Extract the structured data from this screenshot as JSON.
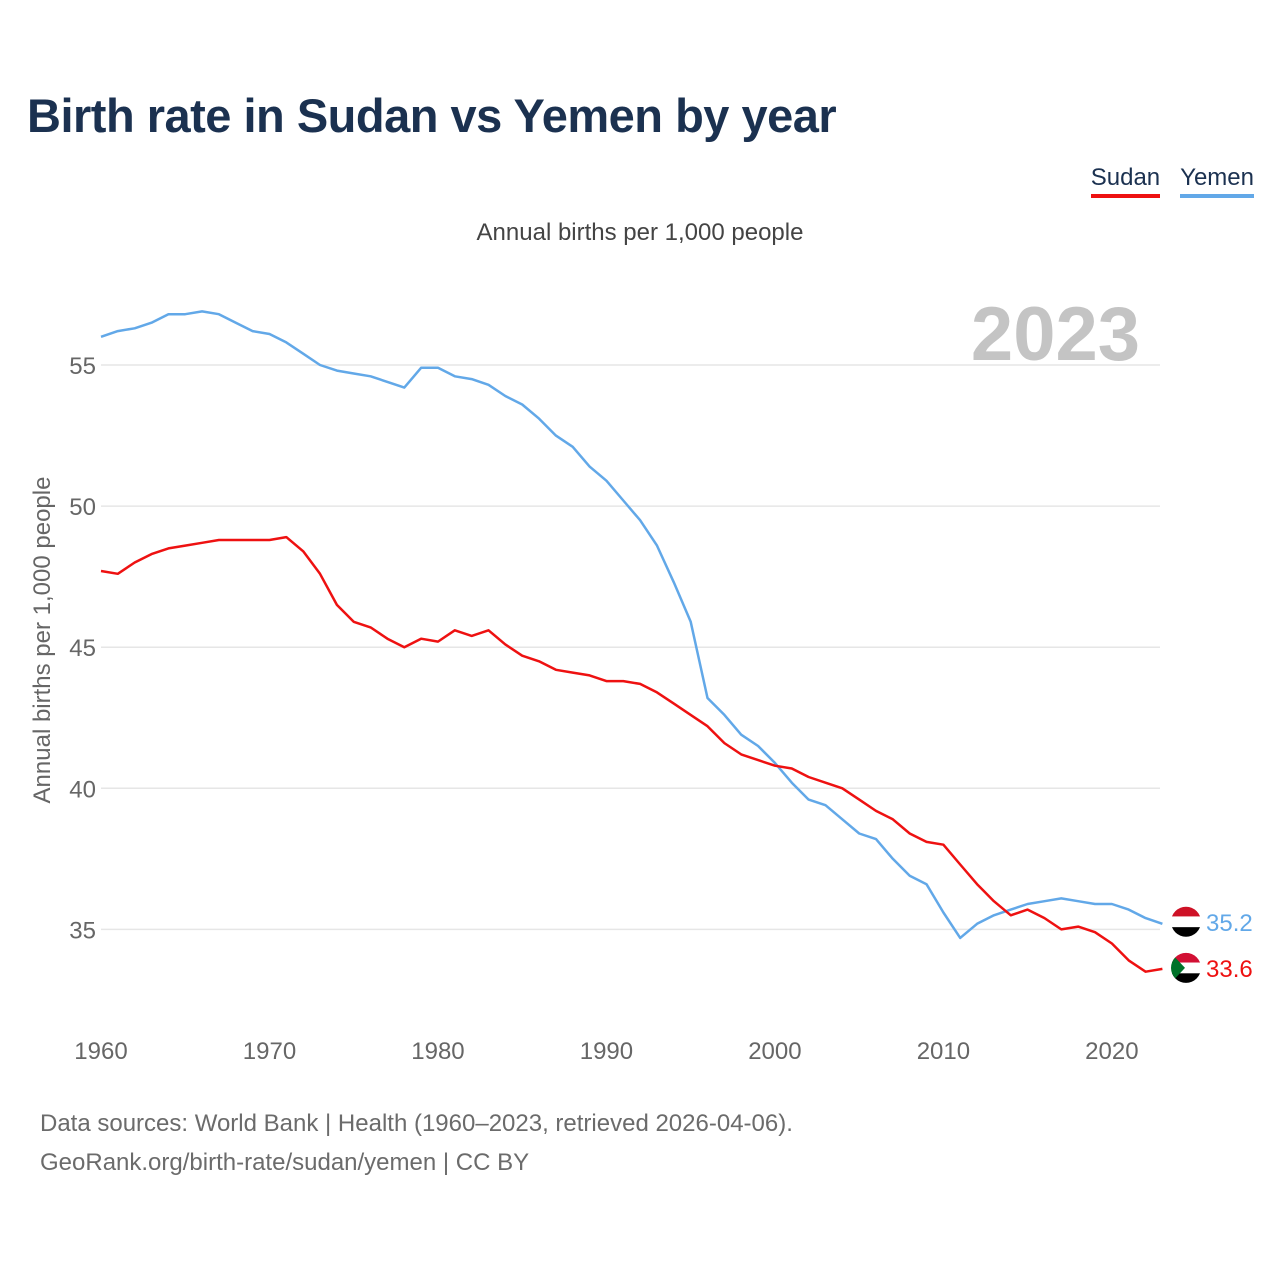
{
  "colors": {
    "sudan": "#ee1111",
    "yemen": "#62a8e8",
    "title": "#1b3150"
  },
  "chart_data": {
    "type": "line",
    "title": "Birth rate in Sudan vs Yemen by year",
    "subtitle": "Annual births per 1,000 people",
    "xlabel": "",
    "ylabel": "Annual births per 1,000 people",
    "year_label": "2023",
    "xlim": [
      1960,
      2023
    ],
    "ylim": [
      32,
      58
    ],
    "x_ticks": [
      1960,
      1970,
      1980,
      1990,
      2000,
      2010,
      2020
    ],
    "y_ticks": [
      35,
      40,
      45,
      50,
      55
    ],
    "grid": true,
    "legend": "top-right",
    "x": [
      1960,
      1961,
      1962,
      1963,
      1964,
      1965,
      1966,
      1967,
      1968,
      1969,
      1970,
      1971,
      1972,
      1973,
      1974,
      1975,
      1976,
      1977,
      1978,
      1979,
      1980,
      1981,
      1982,
      1983,
      1984,
      1985,
      1986,
      1987,
      1988,
      1989,
      1990,
      1991,
      1992,
      1993,
      1994,
      1995,
      1996,
      1997,
      1998,
      1999,
      2000,
      2001,
      2002,
      2003,
      2004,
      2005,
      2006,
      2007,
      2008,
      2009,
      2010,
      2011,
      2012,
      2013,
      2014,
      2015,
      2016,
      2017,
      2018,
      2019,
      2020,
      2021,
      2022,
      2023
    ],
    "series": [
      {
        "name": "Sudan",
        "color": "#ee1111",
        "end_label": "33.6",
        "values": [
          47.7,
          47.6,
          48.0,
          48.3,
          48.5,
          48.6,
          48.7,
          48.8,
          48.8,
          48.8,
          48.8,
          48.9,
          48.4,
          47.6,
          46.5,
          45.9,
          45.7,
          45.3,
          45.0,
          45.3,
          45.2,
          45.6,
          45.4,
          45.6,
          45.1,
          44.7,
          44.5,
          44.2,
          44.1,
          44.0,
          43.8,
          43.8,
          43.7,
          43.4,
          43.0,
          42.6,
          42.2,
          41.6,
          41.2,
          41.0,
          40.8,
          40.7,
          40.4,
          40.2,
          40.0,
          39.6,
          39.2,
          38.9,
          38.4,
          38.1,
          38.0,
          37.3,
          36.6,
          36.0,
          35.5,
          35.7,
          35.4,
          35.0,
          35.1,
          34.9,
          34.5,
          33.9,
          33.5,
          33.6
        ]
      },
      {
        "name": "Yemen",
        "color": "#62a8e8",
        "end_label": "35.2",
        "values": [
          56.0,
          56.2,
          56.3,
          56.5,
          56.8,
          56.8,
          56.9,
          56.8,
          56.5,
          56.2,
          56.1,
          55.8,
          55.4,
          55.0,
          54.8,
          54.7,
          54.6,
          54.4,
          54.2,
          54.9,
          54.9,
          54.6,
          54.5,
          54.3,
          53.9,
          53.6,
          53.1,
          52.5,
          52.1,
          51.4,
          50.9,
          50.2,
          49.5,
          48.6,
          47.3,
          45.9,
          43.2,
          42.6,
          41.9,
          41.5,
          40.9,
          40.2,
          39.6,
          39.4,
          38.9,
          38.4,
          38.2,
          37.5,
          36.9,
          36.6,
          35.6,
          34.7,
          35.2,
          35.5,
          35.7,
          35.9,
          36.0,
          36.1,
          36.0,
          35.9,
          35.9,
          35.7,
          35.4,
          35.2
        ]
      }
    ],
    "sources": [
      "Data sources: World Bank | Health (1960–2023, retrieved 2026-04-06).",
      "GeoRank.org/birth-rate/sudan/yemen | CC BY"
    ]
  }
}
